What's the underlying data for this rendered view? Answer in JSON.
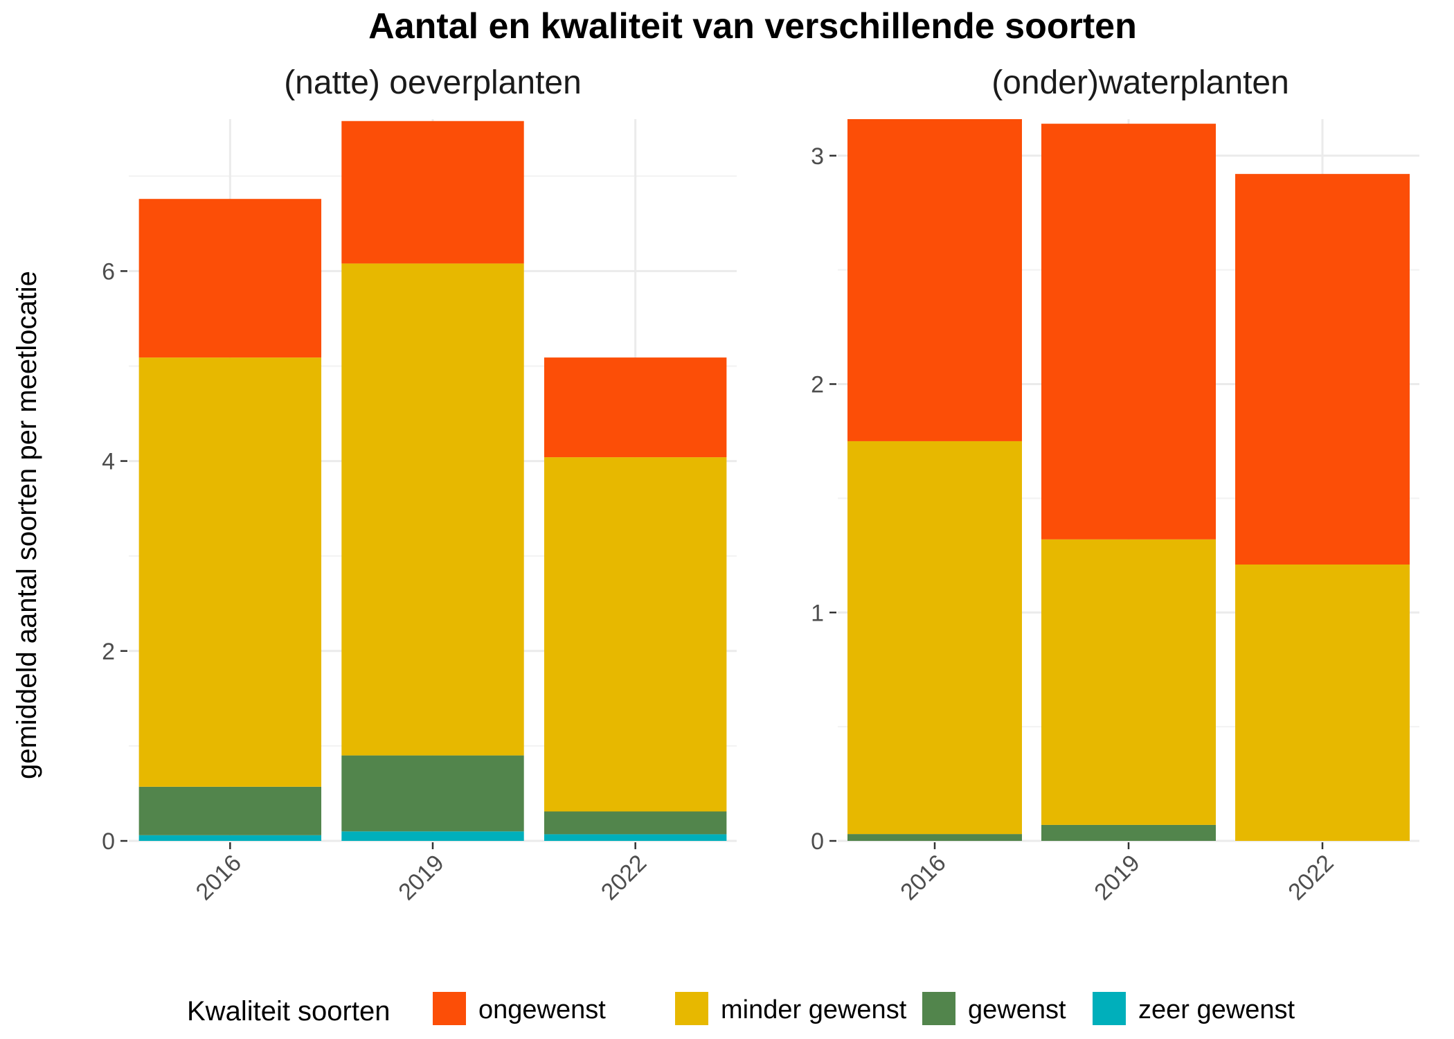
{
  "chart_data": {
    "title": "Aantal en kwaliteit van verschillende soorten",
    "ylabel": "gemiddeld aantal soorten per meetlocatie",
    "legend_title": "Kwaliteit soorten",
    "legend_position": "bottom",
    "grid": true,
    "series_meta": [
      {
        "name": "ongewenst",
        "color": "#FC4E07"
      },
      {
        "name": "minder gewenst",
        "color": "#E7B800"
      },
      {
        "name": "gewenst",
        "color": "#52854C"
      },
      {
        "name": "zeer gewenst",
        "color": "#00AFBB"
      }
    ],
    "panels": [
      {
        "type": "bar",
        "stacked": true,
        "title": "(natte) oeverplanten",
        "categories": [
          "2016",
          "2019",
          "2022"
        ],
        "ylim": [
          0,
          7.6
        ],
        "yticks": [
          0,
          2,
          4,
          6
        ],
        "series": [
          {
            "name": "zeer gewenst",
            "values": [
              0.06,
              0.1,
              0.07
            ]
          },
          {
            "name": "gewenst",
            "values": [
              0.51,
              0.8,
              0.24
            ]
          },
          {
            "name": "minder gewenst",
            "values": [
              4.52,
              5.18,
              3.73
            ]
          },
          {
            "name": "ongewenst",
            "values": [
              1.67,
              1.5,
              1.05
            ]
          }
        ]
      },
      {
        "type": "bar",
        "stacked": true,
        "title": "(onder)waterplanten",
        "categories": [
          "2016",
          "2019",
          "2022"
        ],
        "ylim": [
          0,
          3.16
        ],
        "yticks": [
          0,
          1,
          2,
          3
        ],
        "series": [
          {
            "name": "zeer gewenst",
            "values": [
              0,
              0,
              0
            ]
          },
          {
            "name": "gewenst",
            "values": [
              0.03,
              0.07,
              0
            ]
          },
          {
            "name": "minder gewenst",
            "values": [
              1.72,
              1.25,
              1.21
            ]
          },
          {
            "name": "ongewenst",
            "values": [
              1.41,
              1.82,
              1.71
            ]
          }
        ]
      }
    ]
  }
}
